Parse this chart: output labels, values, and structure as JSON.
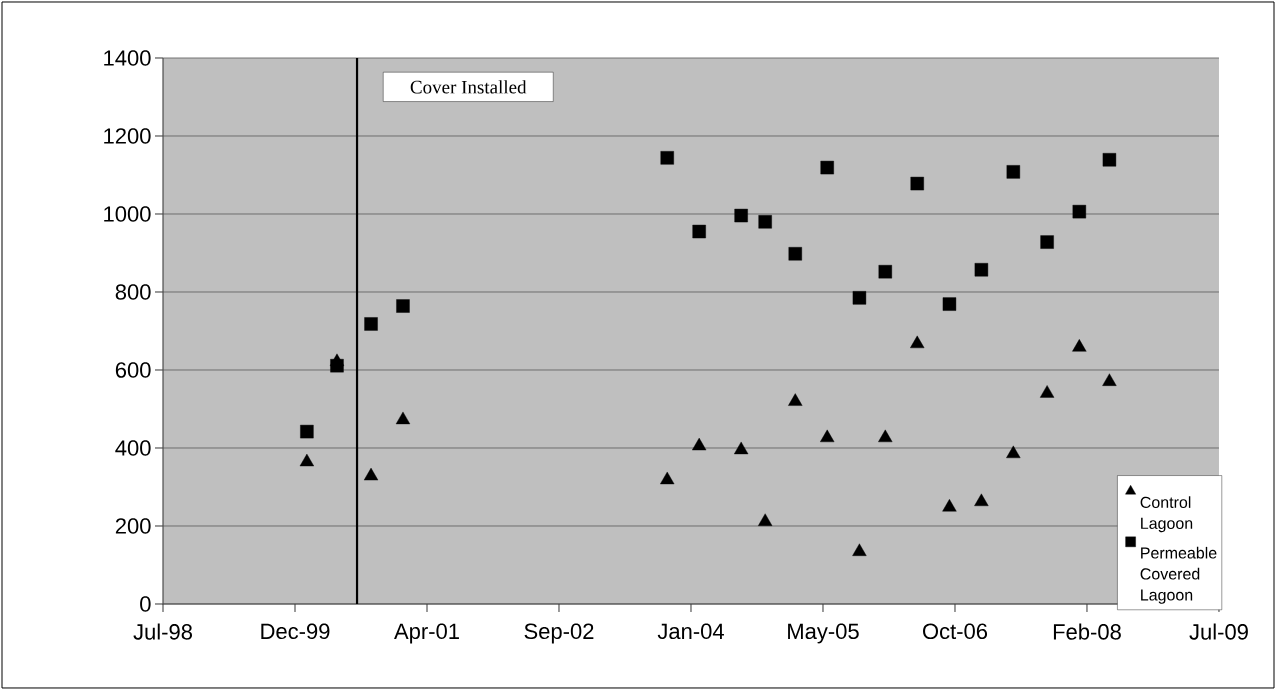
{
  "chart_data": {
    "type": "scatter",
    "x": [
      "2000-01-21",
      "2000-05-14",
      "2000-09-20",
      "2001-01-19",
      "2003-10-17",
      "2004-02-15",
      "2004-07-23",
      "2004-10-22",
      "2005-02-13",
      "2005-06-14",
      "2005-10-14",
      "2006-01-20",
      "2006-05-21",
      "2006-09-20",
      "2007-01-19",
      "2007-05-20",
      "2007-09-25",
      "2008-01-25",
      "2008-05-18"
    ],
    "series": [
      {
        "name": "Control Lagoon",
        "color": "#000000",
        "marker": "triangle",
        "values": [
          364,
          621,
          328,
          472,
          318,
          405,
          395,
          211,
          519,
          426,
          134,
          426,
          667,
          248,
          262,
          385,
          540,
          658,
          570
        ]
      },
      {
        "name": "Permeable Covered Lagoon",
        "color": "#000000",
        "marker": "square",
        "values": [
          442,
          611,
          718,
          764,
          1144,
          955,
          996,
          980,
          898,
          1119,
          785,
          852,
          1078,
          769,
          857,
          1108,
          928,
          1006,
          1139
        ]
      }
    ],
    "xlim": [
      "1998-07-25",
      "2009-07-07"
    ],
    "xticks": [
      {
        "value": "1998-07-25",
        "label": "Jul-98"
      },
      {
        "value": "1999-12-07",
        "label": "Dec-99"
      },
      {
        "value": "2001-04-20",
        "label": "Apr-01"
      },
      {
        "value": "2002-09-02",
        "label": "Sep-02"
      },
      {
        "value": "2004-01-15",
        "label": "Jan-04"
      },
      {
        "value": "2005-05-29",
        "label": "May-05"
      },
      {
        "value": "2006-10-11",
        "label": "Oct-06"
      },
      {
        "value": "2008-02-23",
        "label": "Feb-08"
      },
      {
        "value": "2009-07-07",
        "label": "Jul-09"
      }
    ],
    "ylim": [
      0,
      1400
    ],
    "yticks": [
      0,
      200,
      400,
      600,
      800,
      1000,
      1200,
      1400
    ],
    "grid": "y",
    "legend": "bottom right",
    "ref_lines": [
      {
        "axis": "x",
        "value": "2000-07-29",
        "label": "Cover Installed",
        "color": "#000000"
      }
    ]
  }
}
